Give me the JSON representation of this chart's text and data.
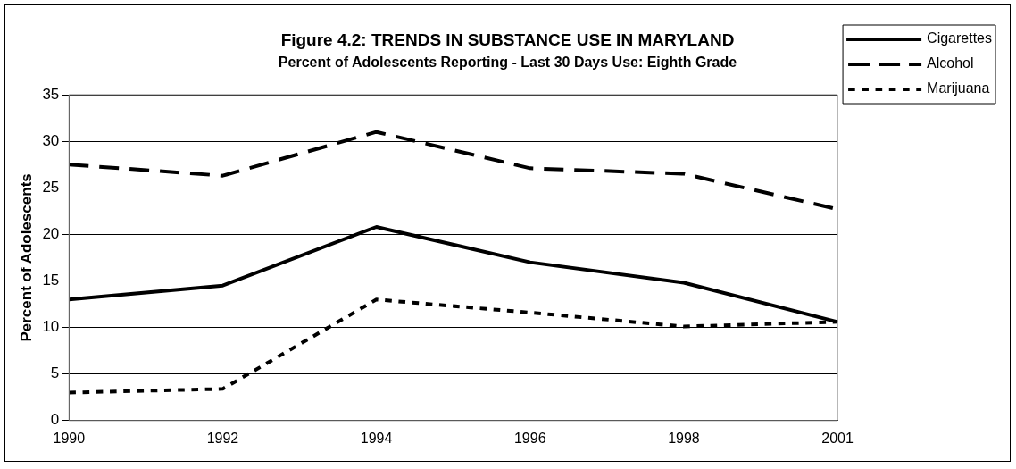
{
  "chart_data": {
    "type": "line",
    "title": "Figure 4.2: TRENDS IN SUBSTANCE USE IN MARYLAND",
    "subtitle": "Percent of Adolescents Reporting - Last 30 Days Use: Eighth Grade",
    "ylabel": "Percent of Adolescents",
    "categories": [
      "1990",
      "1992",
      "1994",
      "1996",
      "1998",
      "2001"
    ],
    "series": [
      {
        "name": "Cigarettes",
        "color": "#000000",
        "line_style": "solid",
        "values": [
          13.0,
          14.5,
          20.8,
          17.0,
          14.8,
          10.6
        ]
      },
      {
        "name": "Alcohol",
        "color": "#000000",
        "line_style": "dashed",
        "values": [
          27.5,
          26.3,
          31.0,
          27.1,
          26.5,
          22.7
        ]
      },
      {
        "name": "Marijuana",
        "color": "#000000",
        "line_style": "dotted",
        "values": [
          3.0,
          3.4,
          13.0,
          11.6,
          10.1,
          10.6
        ]
      }
    ],
    "ylim": [
      0,
      35
    ],
    "yticks": [
      0,
      5,
      10,
      15,
      20,
      25,
      30,
      35
    ],
    "grid": "y",
    "legend": "right",
    "marker": "none"
  }
}
